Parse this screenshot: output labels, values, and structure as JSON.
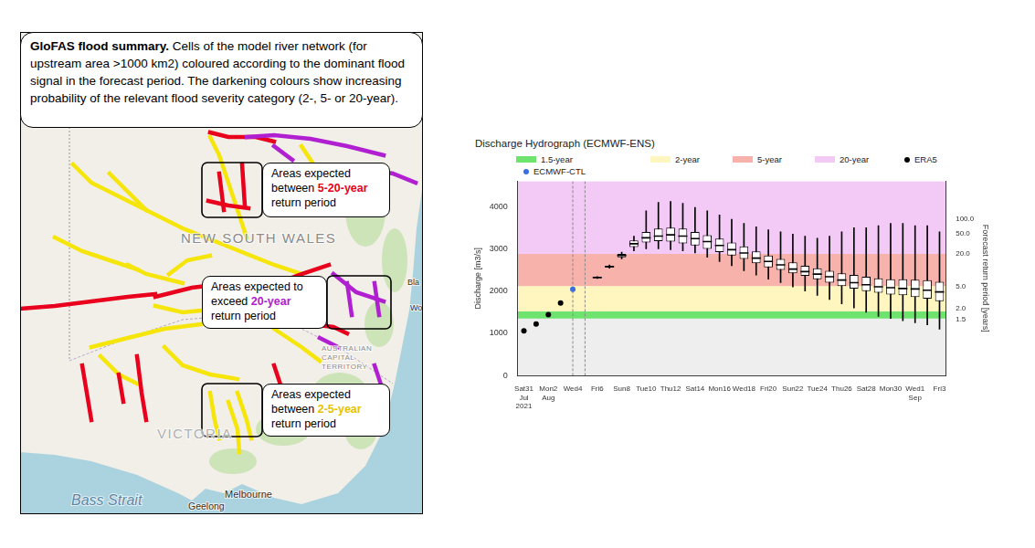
{
  "map_panel": {
    "caption": {
      "title": "GloFAS flood summary.",
      "text": "Cells of the model river network (for upstream area >1000 km2) coloured according to the dominant flood signal in the forecast period. The darkening colours show increasing probability of the relevant flood severity category (2-, 5- or 20-year)."
    },
    "annotations": [
      {
        "lead": "Areas expected between ",
        "highlight": "5-20-year",
        "tail": " return period",
        "color": "#e8001c"
      },
      {
        "lead": "Areas expected to exceed ",
        "highlight": "20-year",
        "tail": " return period",
        "color": "#b020d0"
      },
      {
        "lead": "Areas expected between ",
        "highlight": "2-5-year",
        "tail": " return period",
        "color": "#e6c200"
      }
    ],
    "labels": [
      "NEW SOUTH WALES",
      "AUSTRALIAN CAPITAL TERRITORY",
      "VICTORIA",
      "Melbourne",
      "Geelong",
      "Bass Strait",
      "Bla",
      "Wo"
    ]
  },
  "chart_data": {
    "type": "box",
    "title": "Discharge Hydrograph (ECMWF-ENS)",
    "y_label": "Discharge [m3/s]",
    "categories": [
      [
        "Sat31",
        "Jul",
        "2021"
      ],
      null,
      [
        "Mon2",
        "Aug"
      ],
      null,
      "Wed4",
      null,
      "Fri6",
      null,
      "Sun8",
      null,
      "Tue10",
      null,
      "Thu12",
      null,
      "Sat14",
      null,
      "Mon16",
      null,
      "Wed18",
      null,
      "Fri20",
      null,
      "Sun22",
      null,
      "Tue24",
      null,
      "Thu26",
      null,
      "Sat28",
      null,
      "Mon30",
      null,
      [
        "Wed1",
        "Sep"
      ],
      null,
      "Fri3"
    ],
    "ylim": [
      0,
      4600
    ],
    "yticks": [
      0,
      1000,
      2000,
      3000,
      4000
    ],
    "grid": false,
    "legend": "top",
    "thresholds": [
      {
        "name": "1.5-year",
        "color": "#6ee36e",
        "from": 1350,
        "to": 1520
      },
      {
        "name": "2-year",
        "color": "#fff5bf",
        "from": 1520,
        "to": 2120
      },
      {
        "name": "5-year",
        "color": "#f7b2ac",
        "from": 2120,
        "to": 2880
      },
      {
        "name": "20-year",
        "color": "#f3c9f6",
        "from": 2880,
        "to": 4600
      }
    ],
    "return_period_axis": {
      "title": "Forecast return period [years]",
      "ticks": [
        {
          "discharge": 1330,
          "label": "1.5"
        },
        {
          "discharge": 1590,
          "label": "2.0"
        },
        {
          "discharge": 2110,
          "label": "5.0"
        },
        {
          "discharge": 2890,
          "label": "20.0"
        },
        {
          "discharge": 3350,
          "label": "50.0"
        },
        {
          "discharge": 3700,
          "label": "100.0"
        }
      ]
    },
    "series": [
      {
        "name": "ERA5",
        "type": "scatter",
        "marker": "circle",
        "color": "#000000",
        "values": [
          1060,
          1220,
          1440,
          1720,
          null,
          null,
          null,
          null,
          null,
          null,
          null,
          null,
          null,
          null,
          null,
          null,
          null,
          null,
          null,
          null,
          null,
          null,
          null,
          null,
          null,
          null,
          null,
          null,
          null,
          null,
          null,
          null,
          null,
          null,
          null
        ]
      },
      {
        "name": "ECMWF-CTL",
        "type": "scatter",
        "marker": "circle",
        "color": "#3a6fe0",
        "values": [
          null,
          null,
          null,
          null,
          2040,
          null,
          null,
          null,
          null,
          null,
          null,
          null,
          null,
          null,
          null,
          null,
          null,
          null,
          null,
          null,
          null,
          null,
          null,
          null,
          null,
          null,
          null,
          null,
          null,
          null,
          null,
          null,
          null,
          null,
          null
        ]
      },
      {
        "type": "box",
        "color": "#000000",
        "values": [
          null,
          null,
          null,
          null,
          null,
          null,
          [
            2300,
            2310,
            2320,
            2330,
            2340
          ],
          [
            2540,
            2560,
            2580,
            2600,
            2620
          ],
          [
            2760,
            2800,
            2840,
            2880,
            2920
          ],
          [
            2950,
            3040,
            3120,
            3200,
            3300
          ],
          [
            3000,
            3150,
            3260,
            3400,
            3900
          ],
          [
            3000,
            3180,
            3300,
            3480,
            4100
          ],
          [
            2980,
            3170,
            3330,
            3500,
            4120
          ],
          [
            2950,
            3130,
            3300,
            3480,
            4080
          ],
          [
            2900,
            3080,
            3240,
            3400,
            3980
          ],
          [
            2800,
            3000,
            3170,
            3320,
            3900
          ],
          [
            2700,
            2920,
            3080,
            3240,
            3800
          ],
          [
            2600,
            2840,
            2980,
            3150,
            3700
          ],
          [
            2480,
            2760,
            2900,
            3060,
            3600
          ],
          [
            2380,
            2660,
            2780,
            2940,
            3520
          ],
          [
            2280,
            2560,
            2700,
            2840,
            3450
          ],
          [
            2200,
            2500,
            2620,
            2760,
            3400
          ],
          [
            2100,
            2420,
            2520,
            2680,
            3350
          ],
          [
            2000,
            2360,
            2460,
            2600,
            3300
          ],
          [
            1900,
            2280,
            2400,
            2540,
            3250
          ],
          [
            1800,
            2200,
            2340,
            2480,
            3300
          ],
          [
            1700,
            2120,
            2260,
            2420,
            3400
          ],
          [
            1600,
            2060,
            2200,
            2380,
            3500
          ],
          [
            1500,
            2000,
            2150,
            2340,
            3500
          ],
          [
            1400,
            1960,
            2100,
            2300,
            3550
          ],
          [
            1350,
            1920,
            2080,
            2280,
            3600
          ],
          [
            1300,
            1900,
            2060,
            2280,
            3600
          ],
          [
            1250,
            1860,
            2050,
            2270,
            3550
          ],
          [
            1200,
            1820,
            2020,
            2260,
            3550
          ],
          [
            1100,
            1760,
            1980,
            2220,
            3400
          ]
        ]
      }
    ]
  }
}
